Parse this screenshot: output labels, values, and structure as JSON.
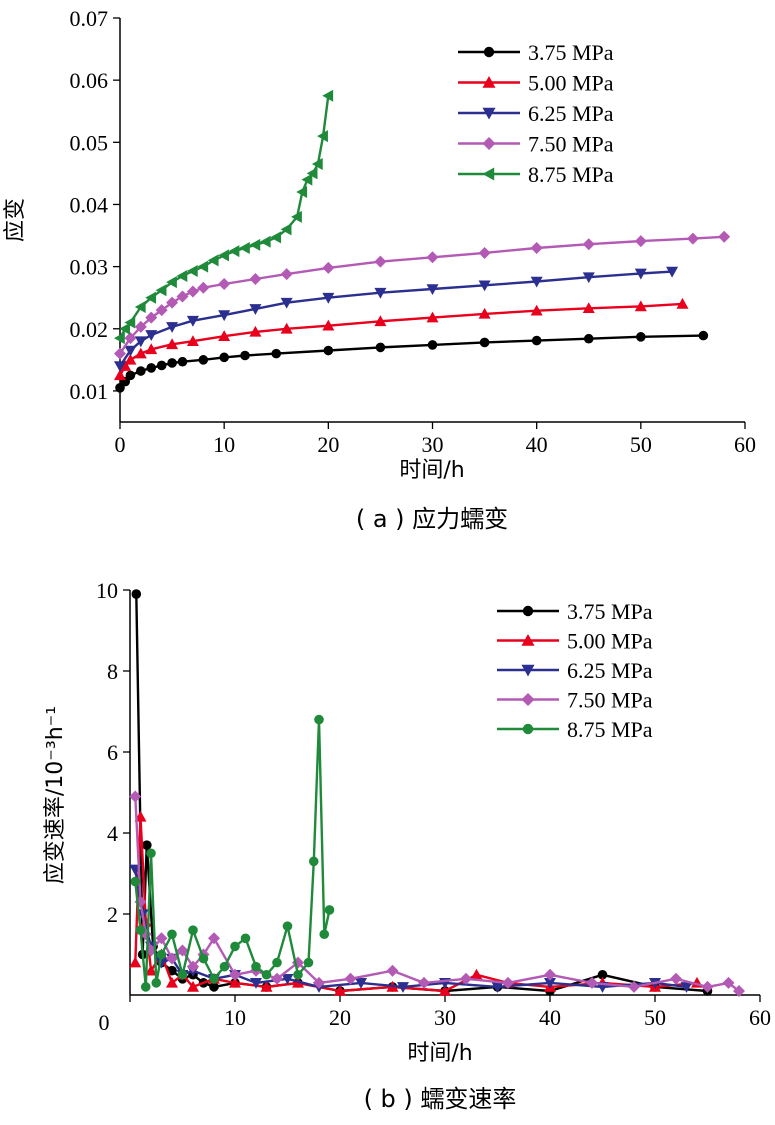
{
  "colors": {
    "3.75 MPa": "#000000",
    "5.00 MPa": "#e8001c",
    "6.25 MPa": "#2b2f8f",
    "7.50 MPa": "#b35ab5",
    "8.75 MPa": "#1e8a3a"
  },
  "chart_data": [
    {
      "type": "line",
      "caption": "( a ) 应力蠕变",
      "xlabel": "时间/h",
      "ylabel": "应变",
      "xlim": [
        0,
        60
      ],
      "ylim": [
        0.005,
        0.07
      ],
      "xticks": [
        "0",
        "10",
        "20",
        "30",
        "40",
        "50",
        "60"
      ],
      "yticks": [
        "0.01",
        "0.02",
        "0.03",
        "0.04",
        "0.05",
        "0.06",
        "0.07"
      ],
      "legend_position": "top-right",
      "series": [
        {
          "name": "3.75 MPa",
          "marker": "circle",
          "x": [
            0,
            0.5,
            1,
            2,
            3,
            4,
            5,
            6,
            8,
            10,
            12,
            15,
            20,
            25,
            30,
            35,
            40,
            45,
            50,
            56
          ],
          "y": [
            0.0105,
            0.0115,
            0.0125,
            0.0132,
            0.0137,
            0.0141,
            0.0145,
            0.0147,
            0.015,
            0.0154,
            0.0157,
            0.016,
            0.0165,
            0.017,
            0.0174,
            0.0178,
            0.0181,
            0.0184,
            0.0187,
            0.0189
          ]
        },
        {
          "name": "5.00 MPa",
          "marker": "triangle-up",
          "x": [
            0,
            0.5,
            1,
            2,
            3,
            5,
            7,
            10,
            13,
            16,
            20,
            25,
            30,
            35,
            40,
            45,
            50,
            54
          ],
          "y": [
            0.0125,
            0.014,
            0.015,
            0.016,
            0.0167,
            0.0175,
            0.018,
            0.0188,
            0.0195,
            0.02,
            0.0205,
            0.0212,
            0.0218,
            0.0224,
            0.0229,
            0.0233,
            0.0236,
            0.024
          ]
        },
        {
          "name": "6.25 MPa",
          "marker": "triangle-down",
          "x": [
            0,
            1,
            2,
            3,
            5,
            7,
            10,
            13,
            16,
            20,
            25,
            30,
            35,
            40,
            45,
            50,
            53
          ],
          "y": [
            0.014,
            0.0165,
            0.018,
            0.019,
            0.0203,
            0.0213,
            0.0222,
            0.0232,
            0.0242,
            0.025,
            0.0258,
            0.0264,
            0.027,
            0.0276,
            0.0283,
            0.0289,
            0.0292
          ]
        },
        {
          "name": "7.50 MPa",
          "marker": "diamond",
          "x": [
            0,
            1,
            2,
            3,
            4,
            5,
            6,
            7,
            8,
            10,
            13,
            16,
            20,
            25,
            30,
            35,
            40,
            45,
            50,
            55,
            58
          ],
          "y": [
            0.016,
            0.0185,
            0.0203,
            0.0218,
            0.023,
            0.0242,
            0.0252,
            0.026,
            0.0266,
            0.0272,
            0.028,
            0.0288,
            0.0298,
            0.0308,
            0.0315,
            0.0322,
            0.033,
            0.0336,
            0.0341,
            0.0345,
            0.0348
          ]
        },
        {
          "name": "8.75 MPa",
          "marker": "triangle-left",
          "x": [
            0,
            0.5,
            1,
            2,
            3,
            4,
            5,
            6,
            7,
            8,
            9,
            10,
            11,
            12,
            13,
            14,
            15,
            16,
            17,
            17.5,
            18,
            18.5,
            19,
            19.5,
            20
          ],
          "y": [
            0.0185,
            0.02,
            0.021,
            0.0235,
            0.025,
            0.0262,
            0.0275,
            0.0285,
            0.0293,
            0.03,
            0.031,
            0.0318,
            0.0325,
            0.033,
            0.0335,
            0.034,
            0.0347,
            0.036,
            0.038,
            0.042,
            0.044,
            0.045,
            0.0465,
            0.051,
            0.0575
          ]
        }
      ]
    },
    {
      "type": "line",
      "caption": "( b ) 蠕变速率",
      "xlabel": "时间/h",
      "ylabel": "应变速率/10⁻³h⁻¹",
      "xlim": [
        0,
        60
      ],
      "ylim": [
        0,
        10
      ],
      "xticks": [
        "0",
        "10",
        "20",
        "30",
        "40",
        "50",
        "60"
      ],
      "yticks": [
        "2",
        "4",
        "6",
        "8",
        "10"
      ],
      "legend_position": "top-right",
      "series": [
        {
          "name": "3.75 MPa",
          "marker": "circle",
          "x": [
            0.6,
            1.2,
            1.6,
            2.2,
            3,
            4,
            5,
            6,
            7,
            8,
            10,
            13,
            16,
            20,
            25,
            30,
            35,
            40,
            45,
            50,
            55
          ],
          "y": [
            9.9,
            1.0,
            3.7,
            1.2,
            0.8,
            0.6,
            0.4,
            0.5,
            0.3,
            0.2,
            0.3,
            0.2,
            0.3,
            0.1,
            0.2,
            0.1,
            0.2,
            0.1,
            0.5,
            0.2,
            0.1
          ]
        },
        {
          "name": "5.00 MPa",
          "marker": "triangle-up",
          "x": [
            0.5,
            1.0,
            1.5,
            2,
            3,
            4,
            5,
            6,
            8,
            10,
            13,
            16,
            20,
            25,
            30,
            33,
            36,
            40,
            45,
            50,
            54
          ],
          "y": [
            0.8,
            4.4,
            1.8,
            0.6,
            1.0,
            0.3,
            0.5,
            0.2,
            0.4,
            0.3,
            0.2,
            0.3,
            0.1,
            0.2,
            0.1,
            0.5,
            0.3,
            0.2,
            0.3,
            0.2,
            0.3
          ]
        },
        {
          "name": "6.25 MPa",
          "marker": "triangle-down",
          "x": [
            0.5,
            1.2,
            2,
            3,
            4,
            5,
            6,
            8,
            10,
            12,
            15,
            18,
            22,
            26,
            30,
            35,
            40,
            45,
            50,
            53
          ],
          "y": [
            3.1,
            2.0,
            1.2,
            0.8,
            0.9,
            0.5,
            0.6,
            0.4,
            0.5,
            0.3,
            0.4,
            0.2,
            0.3,
            0.2,
            0.3,
            0.2,
            0.3,
            0.2,
            0.3,
            0.2
          ]
        },
        {
          "name": "7.50 MPa",
          "marker": "diamond",
          "x": [
            0.5,
            1.0,
            1.5,
            2,
            3,
            4,
            5,
            6,
            7,
            8,
            10,
            12,
            14,
            16,
            18,
            21,
            25,
            28,
            32,
            36,
            40,
            44,
            48,
            52,
            55,
            57,
            58
          ],
          "y": [
            4.9,
            2.3,
            1.5,
            1.1,
            1.4,
            0.9,
            1.1,
            0.7,
            1.0,
            1.4,
            0.5,
            0.6,
            0.4,
            0.8,
            0.3,
            0.4,
            0.6,
            0.3,
            0.4,
            0.3,
            0.5,
            0.3,
            0.2,
            0.4,
            0.2,
            0.3,
            0.1
          ]
        },
        {
          "name": "8.75 MPa",
          "marker": "circle",
          "x": [
            0.5,
            1.0,
            1.5,
            2,
            2.5,
            3,
            4,
            5,
            6,
            7,
            8,
            9,
            10,
            11,
            12,
            13,
            14,
            15,
            16,
            17,
            17.5,
            18,
            18.5,
            19
          ],
          "y": [
            2.8,
            1.6,
            0.2,
            3.5,
            0.3,
            1.0,
            1.5,
            0.5,
            1.6,
            0.9,
            0.4,
            0.7,
            1.2,
            1.4,
            0.7,
            0.5,
            0.8,
            1.7,
            0.5,
            0.8,
            3.3,
            6.8,
            1.5,
            2.1
          ]
        }
      ]
    }
  ]
}
